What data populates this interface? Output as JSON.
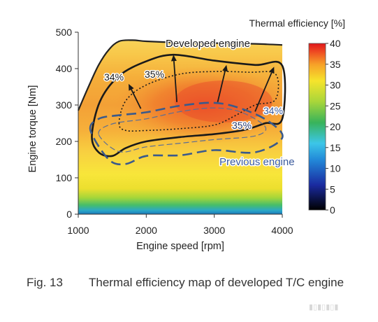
{
  "chart_data": {
    "type": "heatmap",
    "xlabel": "Engine speed [rpm]",
    "ylabel": "Engine torque [Nm]",
    "xlim": [
      1000,
      4000
    ],
    "ylim": [
      0,
      500
    ],
    "x_ticks": [
      1000,
      2000,
      3000,
      4000
    ],
    "y_ticks": [
      0,
      100,
      200,
      300,
      400,
      500
    ],
    "colorbar": {
      "title": "Thermal efficiency [%]",
      "range": [
        0,
        40
      ],
      "ticks": [
        0,
        5,
        10,
        15,
        20,
        25,
        30,
        35,
        40
      ],
      "stops": [
        {
          "value": 0,
          "color": "#000000"
        },
        {
          "value": 6,
          "color": "#1a2aa0"
        },
        {
          "value": 12,
          "color": "#2288d8"
        },
        {
          "value": 16,
          "color": "#3cc6e8"
        },
        {
          "value": 21,
          "color": "#38b35a"
        },
        {
          "value": 26,
          "color": "#a8d63a"
        },
        {
          "value": 31,
          "color": "#f6e42c"
        },
        {
          "value": 35,
          "color": "#f7a028"
        },
        {
          "value": 38,
          "color": "#ee4a22"
        },
        {
          "value": 40,
          "color": "#e0161a"
        }
      ]
    },
    "max_torque_curve": [
      [
        1000,
        285
      ],
      [
        1150,
        350
      ],
      [
        1300,
        410
      ],
      [
        1450,
        452
      ],
      [
        1600,
        475
      ],
      [
        1800,
        478
      ],
      [
        2000,
        475
      ],
      [
        2400,
        472
      ],
      [
        3000,
        470
      ],
      [
        3600,
        468
      ],
      [
        4000,
        465
      ]
    ],
    "developed_contours": [
      {
        "label": "34%",
        "points": [
          [
            1200,
            215
          ],
          [
            1320,
            310
          ],
          [
            1600,
            380
          ],
          [
            2000,
            420
          ],
          [
            2400,
            438
          ],
          [
            3000,
            422
          ],
          [
            3600,
            410
          ],
          [
            4000,
            408
          ],
          [
            4000,
            262
          ],
          [
            3750,
            250
          ],
          [
            3450,
            232
          ],
          [
            3000,
            220
          ],
          [
            2500,
            212
          ],
          [
            2000,
            200
          ],
          [
            1700,
            182
          ],
          [
            1500,
            160
          ],
          [
            1300,
            170
          ],
          [
            1200,
            215
          ]
        ]
      },
      {
        "label": "35%",
        "points": [
          [
            1600,
            250
          ],
          [
            1700,
            312
          ],
          [
            2000,
            355
          ],
          [
            2500,
            385
          ],
          [
            3000,
            392
          ],
          [
            3500,
            390
          ],
          [
            3900,
            385
          ],
          [
            3900,
            315
          ],
          [
            3600,
            300
          ],
          [
            3300,
            270
          ],
          [
            3000,
            245
          ],
          [
            2500,
            235
          ],
          [
            2000,
            230
          ],
          [
            1700,
            230
          ],
          [
            1600,
            250
          ]
        ]
      }
    ],
    "previous_contours": [
      {
        "label": "34%",
        "points": [
          [
            1180,
            230
          ],
          [
            1300,
            262
          ],
          [
            1600,
            272
          ],
          [
            2000,
            280
          ],
          [
            2500,
            298
          ],
          [
            3000,
            306
          ],
          [
            3400,
            290
          ],
          [
            3800,
            255
          ],
          [
            4000,
            210
          ],
          [
            3600,
            170
          ],
          [
            3000,
            176
          ],
          [
            2500,
            162
          ],
          [
            2000,
            160
          ],
          [
            1700,
            138
          ],
          [
            1450,
            150
          ],
          [
            1180,
            230
          ]
        ]
      },
      {
        "label": "35%",
        "points": [
          [
            1300,
            220
          ],
          [
            1500,
            248
          ],
          [
            2000,
            262
          ],
          [
            2500,
            282
          ],
          [
            3000,
            292
          ],
          [
            3400,
            280
          ],
          [
            3750,
            240
          ],
          [
            3600,
            215
          ],
          [
            3000,
            205
          ],
          [
            2500,
            195
          ],
          [
            2000,
            185
          ],
          [
            1600,
            172
          ],
          [
            1300,
            220
          ]
        ]
      }
    ],
    "annotations": [
      {
        "text": "Developed engine"
      },
      {
        "text": "Previous engine"
      },
      {
        "text": "34%"
      },
      {
        "text": "35%"
      },
      {
        "text": "34%"
      },
      {
        "text": "35%"
      }
    ],
    "arrows": [
      {
        "from": [
          1920,
          290
        ],
        "to": [
          1740,
          358
        ]
      },
      {
        "from": [
          2450,
          308
        ],
        "to": [
          2400,
          438
        ]
      },
      {
        "from": [
          3050,
          308
        ],
        "to": [
          3180,
          410
        ]
      },
      {
        "from": [
          3600,
          282
        ],
        "to": [
          3880,
          405
        ]
      }
    ]
  },
  "caption": {
    "label": "Fig. 13",
    "text": "Thermal efficiency map of developed T/C engine"
  }
}
